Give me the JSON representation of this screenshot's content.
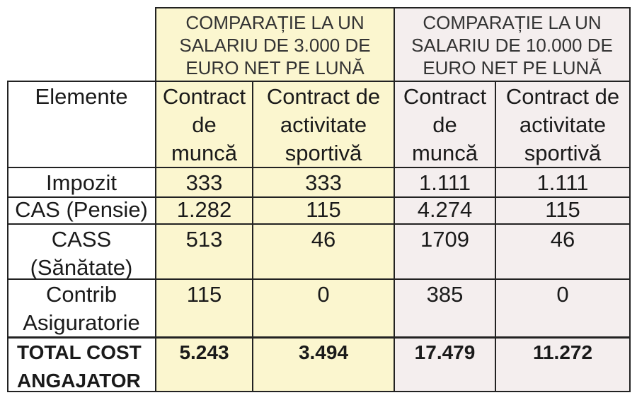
{
  "header": {
    "group1": [
      "COMPARAȚIE LA UN",
      "SALARIU DE 3.000 DE",
      "EURO NET PE LUNĂ"
    ],
    "group2": [
      "COMPARAȚIE LA UN",
      "SALARIU DE 10.000 DE",
      "EURO NET PE LUNĂ"
    ]
  },
  "columns": {
    "elemente": "Elemente",
    "c1": [
      "Contract",
      "de",
      "muncă"
    ],
    "c2": [
      "Contract de",
      "activitate",
      "sportivă"
    ],
    "c3": [
      "Contract",
      "de",
      "muncă"
    ],
    "c4": [
      "Contract de",
      "activitate",
      "sportivă"
    ]
  },
  "rows": [
    {
      "label": [
        "Impozit"
      ],
      "v": [
        "333",
        "333",
        "1.111",
        "1.111"
      ]
    },
    {
      "label": [
        "CAS (Pensie)"
      ],
      "v": [
        "1.282",
        "115",
        "4.274",
        "115"
      ]
    },
    {
      "label": [
        "CASS",
        "(Sănătate)"
      ],
      "v": [
        "513",
        "46",
        "1709",
        "46"
      ]
    },
    {
      "label": [
        "Contrib",
        "Asiguratorie"
      ],
      "v": [
        "115",
        "0",
        "385",
        "0"
      ]
    }
  ],
  "total": {
    "label": [
      "TOTAL COST",
      "ANGAJATOR"
    ],
    "v": [
      "5.243",
      "3.494",
      "17.479",
      "11.272"
    ]
  },
  "colors": {
    "highlight_3000": "#fbf6cf",
    "highlight_10000": "#f4eeee",
    "border": "#222222"
  }
}
